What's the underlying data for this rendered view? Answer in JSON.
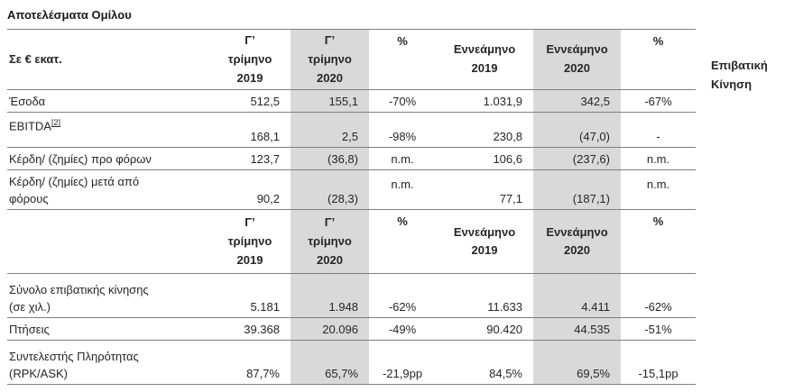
{
  "title": "Αποτελέσματα Ομίλου",
  "side_label": "Επιβατική\nΚίνηση",
  "colors": {
    "highlight_column": "#d9d9d9",
    "rule_line": "#7f7f7f",
    "text": "#262626"
  },
  "financials": {
    "corner": "Σε € εκατ.",
    "headers": [
      "Γ’\nτρίμηνο\n2019",
      "Γ’\nτρίμηνο\n2020",
      "%",
      "Εννεάμηνο\n2019",
      "Εννεάμηνο\n2020",
      "%"
    ],
    "rows": [
      {
        "label": "Έσοδα",
        "sup": "",
        "values": [
          "512,5",
          "155,1",
          "-70%",
          "1.031,9",
          "342,5",
          "-67%"
        ]
      },
      {
        "label": "EBITDA",
        "sup": "[2]",
        "values": [
          "168,1",
          "2,5",
          "-98%",
          "230,8",
          "(47,0)",
          "-"
        ]
      },
      {
        "label": "Κέρδη/ (ζημίες) προ φόρων",
        "sup": "",
        "values": [
          "123,7",
          "(36,8)",
          "n.m.",
          "106,6",
          "(237,6)",
          "n.m."
        ]
      },
      {
        "label": "Κέρδη/ (ζημίες) μετά από\nφόρους",
        "sup": "",
        "values": [
          "90,2",
          "(28,3)",
          "n.m.",
          "77,1",
          "(187,1)",
          "n.m."
        ]
      }
    ]
  },
  "traffic": {
    "corner": "",
    "headers": [
      "Γ’\nτρίμηνο\n2019",
      "Γ’\nτρίμηνο\n2020",
      "%",
      "Εννεάμηνο\n2019",
      "Εννεάμηνο\n2020",
      "%"
    ],
    "rows": [
      {
        "label": "Σύνολο επιβατικής κίνησης\n(σε χιλ.)",
        "values": [
          "5.181",
          "1.948",
          "-62%",
          "11.633",
          "4.411",
          "-62%"
        ]
      },
      {
        "label": "Πτήσεις",
        "values": [
          "39.368",
          "20.096",
          "-49%",
          "90.420",
          "44.535",
          "-51%"
        ]
      },
      {
        "label": "Συντελεστής Πληρότητας\n(RPK/ASK)",
        "values": [
          "87,7%",
          "65,7%",
          "-21,9pp",
          "84,5%",
          "69,5%",
          "-15,1pp"
        ]
      }
    ]
  }
}
